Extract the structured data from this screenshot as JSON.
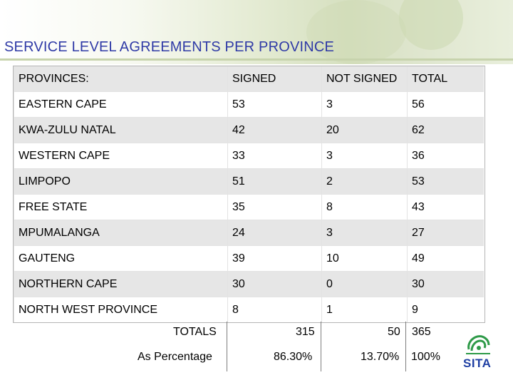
{
  "title": "SERVICE LEVEL AGREEMENTS PER PROVINCE",
  "table": {
    "headers": [
      "PROVINCES:",
      "SIGNED",
      "NOT SIGNED",
      "TOTAL"
    ],
    "rows": [
      [
        "EASTERN CAPE",
        "53",
        "3",
        "56"
      ],
      [
        "KWA-ZULU NATAL",
        "42",
        "20",
        "62"
      ],
      [
        "WESTERN CAPE",
        "33",
        "3",
        "36"
      ],
      [
        "LIMPOPO",
        "51",
        "2",
        "53"
      ],
      [
        "FREE STATE",
        "35",
        "8",
        "43"
      ],
      [
        "MPUMALANGA",
        "24",
        "3",
        "27"
      ],
      [
        "GAUTENG",
        "39",
        "10",
        "49"
      ],
      [
        "NORTHERN CAPE",
        "30",
        "0",
        "30"
      ],
      [
        "NORTH WEST PROVINCE",
        "8",
        "1",
        "9"
      ]
    ]
  },
  "totals": {
    "label": "TOTALS",
    "signed": "315",
    "not_signed": "50",
    "total": "365"
  },
  "percentage": {
    "label": "As Percentage",
    "signed": "86.30%",
    "not_signed": "13.70%",
    "total": "100%"
  },
  "logo": {
    "text": "SITA",
    "color": "#1f3fa3",
    "accent": "#2e9a48"
  }
}
